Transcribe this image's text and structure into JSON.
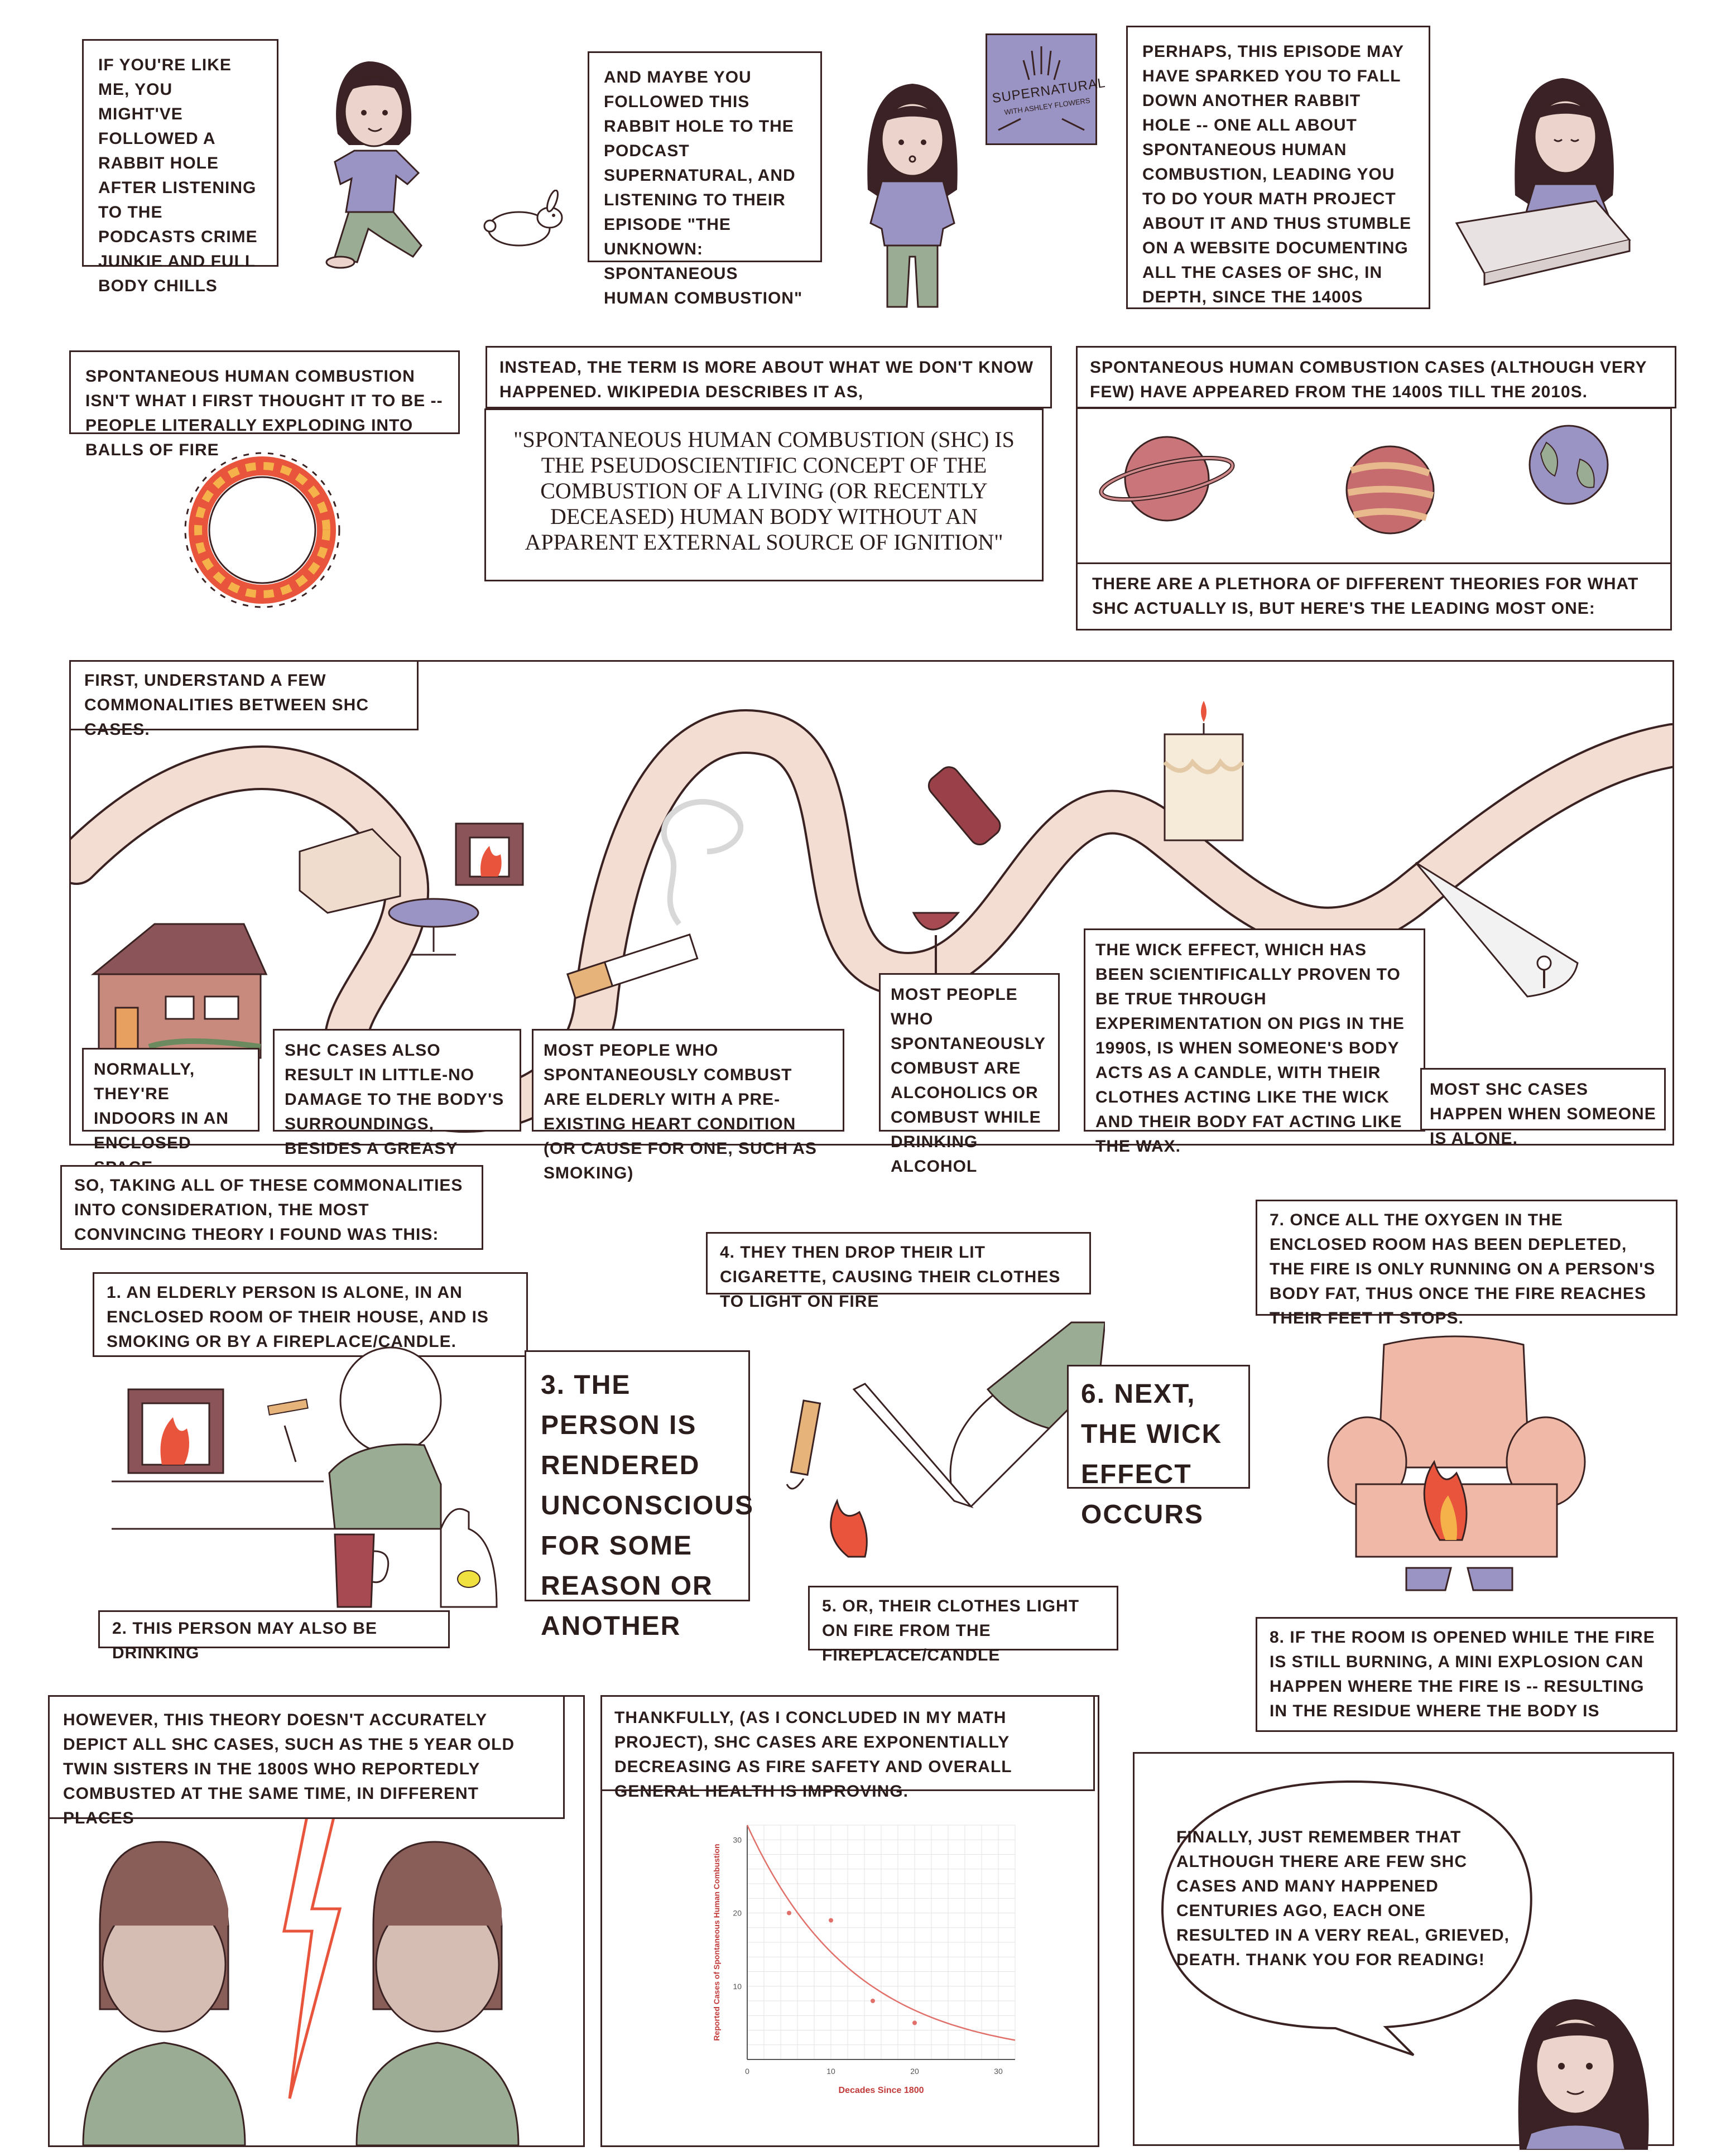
{
  "captions": {
    "c1": "If you're like me, you might've followed a rabbit hole after listening to the podcasts Crime Junkie and Full Body Chills",
    "c2": "And maybe you followed this rabbit hole to the podcast Supernatural, and listening to their episode \"The Unknown: Spontaneous Human Combustion\"",
    "c3": "Perhaps, this episode may have sparked you to fall down another rabbit hole -- one all about spontaneous human combustion, leading you to do your math project about it and thus stumble on a website documenting all the cases of SHC, in depth, since the 1400s",
    "c4": "Spontaneous human combustion isn't what I first thought it to be -- people literally exploding into balls of fire",
    "c5": "Instead, the term is more about what we don't know happened. Wikipedia describes it as,",
    "quote": "\"Spontaneous human combustion (SHC) is the pseudoscientific concept of the combustion of a living (or recently deceased) human body without an apparent external source of ignition\"",
    "c6": "Spontaneous human combustion cases (although very few) have appeared from the 1400s till the 2010s.",
    "c7": "There are a plethora of different theories for what SHC actually is, but here's the leading most one:",
    "c8": "First, understand a few commonalities between SHC cases.",
    "c9": "Normally, they're indoors in an enclosed space.",
    "c10": "SHC cases also result in little-no damage to the body's surroundings, besides a greasy residue",
    "c11": "Most people who spontaneously combust are elderly with a pre-existing heart condition (or cause for one, such as smoking)",
    "c12": "Most people who spontaneously combust are alcoholics or combust while drinking alcohol",
    "c13": "The wick effect, which has been scientifically proven to be true through experimentation on pigs in the 1990s, is when someone's body acts as a candle, with their clothes acting like the wick and their body fat acting like the wax.",
    "c14": "Most SHC cases happen when someone is alone.",
    "c15": "So, taking all of these commonalities into consideration, the most convincing theory I found was this:",
    "c16": "1. An elderly person is alone, in an enclosed room of their house, and is smoking or by a fireplace/candle.",
    "c17": "2. This person may also be drinking",
    "c18": "3. The person is rendered unconscious for some reason or another",
    "c19": "4. They then drop their lit cigarette, causing their clothes to light on fire",
    "c20": "5. Or, their clothes light on fire from the fireplace/candle",
    "c21": "6. Next, the wick effect occurs",
    "c22": "7. Once all the oxygen in the enclosed room has been depleted, the fire is only running on a person's body fat, thus once the fire reaches their feet it stops.",
    "c23": "8. If the room is opened while the fire is still burning, a mini explosion can happen where the fire is -- resulting in the residue where the body is",
    "c24": "However, this theory doesn't accurately depict all SHC cases, such as the 5 year old twin sisters in the 1800s who reportedly combusted at the same time, in different places",
    "c25": "Thankfully, (as I concluded in my math project), SHC cases are exponentially decreasing as fire safety and overall general health is improving.",
    "finale": "Finally, just remember that although there are few SHC cases and many happened centuries ago, each one resulted in a very real, grieved, death. Thank you for reading!"
  },
  "sign": {
    "title": "SUPERNATURAL",
    "subtitle": "with Ashley Flowers"
  },
  "colors": {
    "ink": "#3a2222",
    "shirt": "#9a94c4",
    "skin": "#ecd3cc",
    "hair": "#3a2226",
    "river": "#f3ddd3",
    "green": "#9aad94",
    "fire": "#e8553c",
    "curve": "#e2706a"
  },
  "chart_data": {
    "type": "scatter",
    "xlabel": "Decades Since 1800",
    "ylabel": "Reported Cases of Spontaneous Human Combustion",
    "xlim": [
      0,
      32
    ],
    "ylim": [
      0,
      32
    ],
    "xticks": [
      "0",
      "10",
      "20",
      "30"
    ],
    "yticks": [
      "10",
      "20",
      "30"
    ],
    "points": [
      {
        "x": 5,
        "y": 20
      },
      {
        "x": 10,
        "y": 19
      },
      {
        "x": 15,
        "y": 8
      },
      {
        "x": 20,
        "y": 5
      }
    ],
    "fit": {
      "type": "exponential",
      "a": 32,
      "b": -0.078
    }
  }
}
